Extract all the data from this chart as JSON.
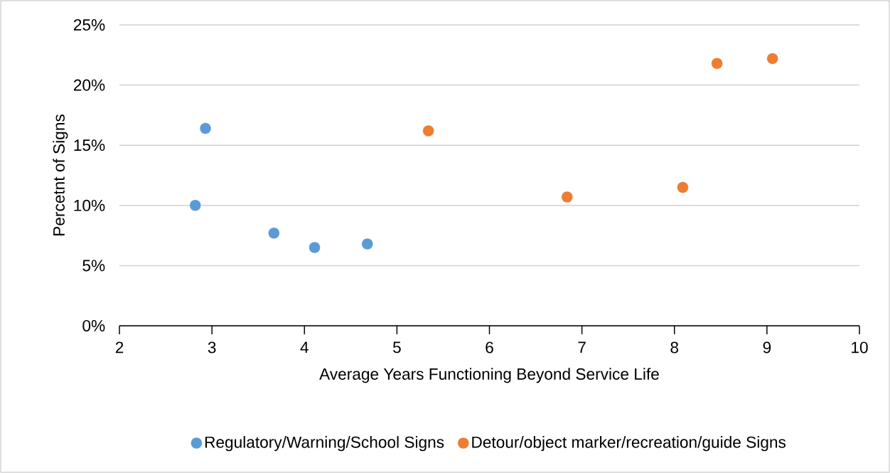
{
  "chart_data": {
    "type": "scatter",
    "xlabel": "Average Years Functioning Beyond Service Life",
    "ylabel": "Percetnt of Signs",
    "xlim": [
      2,
      10
    ],
    "xticks": [
      2,
      3,
      4,
      5,
      6,
      7,
      8,
      9,
      10
    ],
    "ylim": [
      0,
      25
    ],
    "yticks": [
      {
        "value": 0,
        "label": "0%"
      },
      {
        "value": 5,
        "label": "5%"
      },
      {
        "value": 10,
        "label": "10%"
      },
      {
        "value": 15,
        "label": "15%"
      },
      {
        "value": 20,
        "label": "20%"
      },
      {
        "value": 25,
        "label": "25%"
      }
    ],
    "grid": "y",
    "legend": "bottom",
    "marker": "circle",
    "series": [
      {
        "name": "Regulatory/Warning/School Signs",
        "color": "#5b9bd5",
        "x": [
          2.82,
          2.93,
          3.67,
          4.11,
          4.68
        ],
        "values": [
          10.0,
          16.4,
          7.7,
          6.5,
          6.8
        ]
      },
      {
        "name": "Detour/object marker/recreation/guide Signs",
        "color": "#ed7d31",
        "x": [
          5.34,
          6.84,
          8.09,
          8.46,
          9.06
        ],
        "values": [
          16.2,
          10.7,
          11.5,
          21.8,
          22.2
        ]
      }
    ]
  }
}
